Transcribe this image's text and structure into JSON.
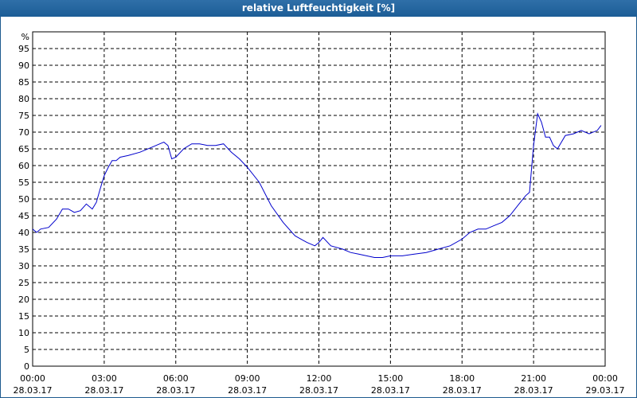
{
  "title": "relative Luftfeuchtigkeit [%]",
  "chart_data": {
    "type": "line",
    "title": "relative Luftfeuchtigkeit [%]",
    "ylabel": "%",
    "xlabel": "",
    "ylim": [
      0,
      100
    ],
    "yticks": [
      0,
      5,
      10,
      15,
      20,
      25,
      30,
      35,
      40,
      45,
      50,
      55,
      60,
      65,
      70,
      75,
      80,
      85,
      90,
      95
    ],
    "xlim": [
      0,
      24
    ],
    "xticks": [
      {
        "hour": 0,
        "time": "00:00",
        "date": "28.03.17"
      },
      {
        "hour": 3,
        "time": "03:00",
        "date": "28.03.17"
      },
      {
        "hour": 6,
        "time": "06:00",
        "date": "28.03.17"
      },
      {
        "hour": 9,
        "time": "09:00",
        "date": "28.03.17"
      },
      {
        "hour": 12,
        "time": "12:00",
        "date": "28.03.17"
      },
      {
        "hour": 15,
        "time": "15:00",
        "date": "28.03.17"
      },
      {
        "hour": 18,
        "time": "18:00",
        "date": "28.03.17"
      },
      {
        "hour": 21,
        "time": "21:00",
        "date": "28.03.17"
      },
      {
        "hour": 24,
        "time": "00:00",
        "date": "29.03.17"
      }
    ],
    "grid": true,
    "line_color": "#0000cc",
    "series": [
      {
        "x": [
          0,
          0.17,
          0.33,
          0.67,
          1.0,
          1.25,
          1.5,
          1.75,
          2.0,
          2.25,
          2.5,
          2.67,
          2.83,
          3.0,
          3.17,
          3.33,
          3.5,
          3.67,
          4.0,
          4.5,
          5.0,
          5.33,
          5.5,
          5.67,
          5.83,
          6.0,
          6.33,
          6.67,
          7.0,
          7.33,
          7.67,
          8.0,
          8.33,
          8.67,
          9.0,
          9.5,
          10.0,
          10.5,
          11.0,
          11.5,
          11.83,
          12.0,
          12.17,
          12.5,
          13.0,
          13.33,
          13.67,
          14.0,
          14.33,
          14.67,
          15.0,
          15.5,
          16.0,
          16.5,
          17.0,
          17.5,
          18.0,
          18.33,
          18.67,
          19.0,
          19.33,
          19.67,
          20.0,
          20.33,
          20.67,
          20.83,
          21.0,
          21.17,
          21.33,
          21.5,
          21.67,
          21.83,
          22.0,
          22.33,
          22.67,
          23.0,
          23.33,
          23.67,
          23.83
        ],
        "values": [
          41,
          40,
          41,
          41.5,
          44,
          47,
          47,
          46,
          46.5,
          48.5,
          47,
          49,
          53,
          57,
          59.5,
          61.5,
          61.5,
          62.5,
          63,
          64,
          65.5,
          66.5,
          67,
          66,
          62,
          62.5,
          65,
          66.5,
          66.5,
          66,
          66,
          66.5,
          64,
          62,
          59.5,
          55,
          48,
          43,
          39,
          37,
          36,
          37,
          38.5,
          36,
          35,
          34,
          33.5,
          33,
          32.5,
          32.5,
          33,
          33,
          33.5,
          34,
          35,
          36,
          38,
          40,
          41,
          41,
          42,
          43,
          45,
          48,
          51,
          52,
          66,
          75.5,
          73,
          68.5,
          68.5,
          66,
          65,
          69,
          69.5,
          70.5,
          69.5,
          70.5,
          72
        ]
      }
    ]
  }
}
